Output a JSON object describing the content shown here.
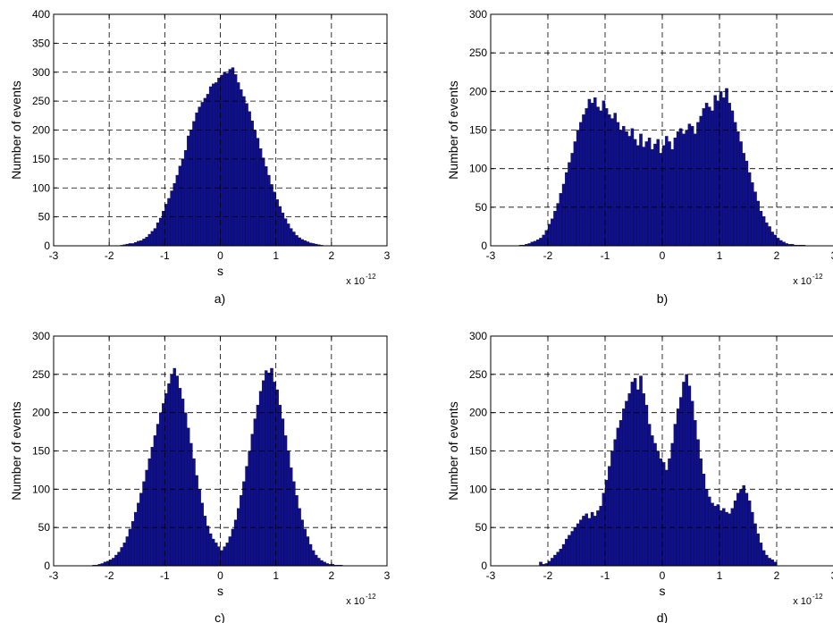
{
  "figure": {
    "panel_labels": [
      "a)",
      "b)",
      "c)",
      "d)"
    ]
  },
  "colors": {
    "bar_fill": "#10108a",
    "bar_edge": "#000040",
    "grid": "#000000",
    "axes": "#000000"
  },
  "chart_data": [
    {
      "type": "bar",
      "panel": "a)",
      "xlabel": "s",
      "ylabel": "Number of events",
      "x_multiplier": "x 10",
      "x_exponent": "-12",
      "xlim": [
        -3,
        3
      ],
      "ylim": [
        0,
        400
      ],
      "xticks": [
        "-3",
        "-2",
        "-1",
        "0",
        "1",
        "2",
        "3"
      ],
      "yticks": [
        "0",
        "50",
        "100",
        "150",
        "200",
        "250",
        "300",
        "350",
        "400"
      ],
      "grid": true,
      "bin_width": 0.05,
      "x": [
        -1.8,
        -1.75,
        -1.7,
        -1.65,
        -1.6,
        -1.55,
        -1.5,
        -1.45,
        -1.4,
        -1.35,
        -1.3,
        -1.25,
        -1.2,
        -1.15,
        -1.1,
        -1.05,
        -1.0,
        -0.95,
        -0.9,
        -0.85,
        -0.8,
        -0.75,
        -0.7,
        -0.65,
        -0.6,
        -0.55,
        -0.5,
        -0.45,
        -0.4,
        -0.35,
        -0.3,
        -0.25,
        -0.2,
        -0.15,
        -0.1,
        -0.05,
        0.0,
        0.05,
        0.1,
        0.15,
        0.2,
        0.25,
        0.3,
        0.35,
        0.4,
        0.45,
        0.5,
        0.55,
        0.6,
        0.65,
        0.7,
        0.75,
        0.8,
        0.85,
        0.9,
        0.95,
        1.0,
        1.05,
        1.1,
        1.15,
        1.2,
        1.25,
        1.3,
        1.35,
        1.4,
        1.45,
        1.5,
        1.55,
        1.6,
        1.65,
        1.7,
        1.75,
        1.8
      ],
      "values": [
        1,
        2,
        3,
        4,
        4,
        6,
        8,
        9,
        12,
        15,
        20,
        25,
        30,
        40,
        48,
        60,
        72,
        82,
        95,
        108,
        122,
        138,
        150,
        165,
        190,
        200,
        215,
        230,
        240,
        248,
        255,
        262,
        275,
        280,
        282,
        290,
        295,
        300,
        298,
        305,
        308,
        296,
        282,
        270,
        258,
        246,
        232,
        216,
        200,
        186,
        168,
        152,
        137,
        122,
        106,
        93,
        80,
        68,
        57,
        47,
        38,
        30,
        24,
        18,
        14,
        11,
        9,
        7,
        5,
        4,
        3,
        2,
        1
      ]
    },
    {
      "type": "bar",
      "panel": "b)",
      "xlabel": "",
      "ylabel": "Number of events",
      "x_multiplier": "x 10",
      "x_exponent": "-12",
      "xlim": [
        -3,
        3
      ],
      "ylim": [
        0,
        300
      ],
      "xticks": [
        "-3",
        "-2",
        "-1",
        "0",
        "1",
        "2",
        "3"
      ],
      "yticks": [
        "0",
        "50",
        "100",
        "150",
        "200",
        "250",
        "300"
      ],
      "grid": true,
      "bin_width": 0.05,
      "x": [
        -2.5,
        -2.45,
        -2.4,
        -2.35,
        -2.3,
        -2.25,
        -2.2,
        -2.15,
        -2.1,
        -2.05,
        -2.0,
        -1.95,
        -1.9,
        -1.85,
        -1.8,
        -1.75,
        -1.7,
        -1.65,
        -1.6,
        -1.55,
        -1.5,
        -1.45,
        -1.4,
        -1.35,
        -1.3,
        -1.25,
        -1.2,
        -1.15,
        -1.1,
        -1.05,
        -1.0,
        -0.95,
        -0.9,
        -0.85,
        -0.8,
        -0.75,
        -0.7,
        -0.65,
        -0.6,
        -0.55,
        -0.5,
        -0.45,
        -0.4,
        -0.35,
        -0.3,
        -0.25,
        -0.2,
        -0.15,
        -0.1,
        -0.05,
        0.0,
        0.05,
        0.1,
        0.15,
        0.2,
        0.25,
        0.3,
        0.35,
        0.4,
        0.45,
        0.5,
        0.55,
        0.6,
        0.65,
        0.7,
        0.75,
        0.8,
        0.85,
        0.9,
        0.95,
        1.0,
        1.05,
        1.1,
        1.15,
        1.2,
        1.25,
        1.3,
        1.35,
        1.4,
        1.45,
        1.5,
        1.55,
        1.6,
        1.65,
        1.7,
        1.75,
        1.8,
        1.85,
        1.9,
        1.95,
        2.0,
        2.05,
        2.1,
        2.15,
        2.2,
        2.25,
        2.3,
        2.35,
        2.4,
        2.45
      ],
      "values": [
        1,
        1,
        2,
        3,
        5,
        6,
        8,
        10,
        14,
        20,
        28,
        35,
        45,
        55,
        68,
        80,
        95,
        108,
        120,
        135,
        150,
        160,
        170,
        178,
        190,
        185,
        192,
        180,
        175,
        188,
        178,
        170,
        165,
        172,
        160,
        150,
        155,
        148,
        142,
        152,
        138,
        130,
        145,
        128,
        135,
        140,
        125,
        132,
        138,
        120,
        130,
        142,
        135,
        125,
        140,
        148,
        152,
        145,
        150,
        158,
        155,
        145,
        160,
        168,
        178,
        185,
        180,
        175,
        195,
        188,
        200,
        192,
        204,
        185,
        175,
        160,
        148,
        135,
        120,
        110,
        95,
        82,
        70,
        58,
        45,
        38,
        30,
        25,
        18,
        14,
        10,
        7,
        5,
        3,
        2,
        2,
        1,
        1,
        1,
        1
      ]
    },
    {
      "type": "bar",
      "panel": "c)",
      "xlabel": "s",
      "ylabel": "Number of events",
      "x_multiplier": "x 10",
      "x_exponent": "-12",
      "xlim": [
        -3,
        3
      ],
      "ylim": [
        0,
        300
      ],
      "xticks": [
        "-3",
        "-2",
        "-1",
        "0",
        "1",
        "2",
        "3"
      ],
      "yticks": [
        "0",
        "50",
        "100",
        "150",
        "200",
        "250",
        "300"
      ],
      "grid": true,
      "bin_width": 0.05,
      "x": [
        -2.3,
        -2.25,
        -2.2,
        -2.15,
        -2.1,
        -2.05,
        -2.0,
        -1.95,
        -1.9,
        -1.85,
        -1.8,
        -1.75,
        -1.7,
        -1.65,
        -1.6,
        -1.55,
        -1.5,
        -1.45,
        -1.4,
        -1.35,
        -1.3,
        -1.25,
        -1.2,
        -1.15,
        -1.1,
        -1.05,
        -1.0,
        -0.95,
        -0.9,
        -0.85,
        -0.8,
        -0.75,
        -0.7,
        -0.65,
        -0.6,
        -0.55,
        -0.5,
        -0.45,
        -0.4,
        -0.35,
        -0.3,
        -0.25,
        -0.2,
        -0.15,
        -0.1,
        -0.05,
        0.0,
        0.05,
        0.1,
        0.15,
        0.2,
        0.25,
        0.3,
        0.35,
        0.4,
        0.45,
        0.5,
        0.55,
        0.6,
        0.65,
        0.7,
        0.75,
        0.8,
        0.85,
        0.9,
        0.95,
        1.0,
        1.05,
        1.1,
        1.15,
        1.2,
        1.25,
        1.3,
        1.35,
        1.4,
        1.45,
        1.5,
        1.55,
        1.6,
        1.65,
        1.7,
        1.75,
        1.8,
        1.85,
        1.9,
        1.95,
        2.0,
        2.05,
        2.1,
        2.15
      ],
      "values": [
        1,
        1,
        2,
        3,
        5,
        6,
        8,
        10,
        14,
        18,
        24,
        30,
        38,
        48,
        58,
        70,
        82,
        95,
        110,
        125,
        140,
        155,
        170,
        185,
        200,
        212,
        225,
        238,
        250,
        258,
        248,
        232,
        218,
        200,
        180,
        160,
        140,
        118,
        100,
        82,
        65,
        52,
        42,
        35,
        30,
        25,
        20,
        25,
        30,
        38,
        48,
        60,
        75,
        92,
        110,
        130,
        150,
        172,
        192,
        210,
        228,
        242,
        255,
        252,
        258,
        240,
        230,
        210,
        192,
        170,
        150,
        128,
        110,
        92,
        75,
        60,
        48,
        38,
        28,
        20,
        14,
        10,
        7,
        5,
        3,
        2,
        2,
        1,
        1,
        1
      ]
    },
    {
      "type": "bar",
      "panel": "d)",
      "xlabel": "s",
      "ylabel": "Number of events",
      "x_multiplier": "x 10",
      "x_exponent": "-12",
      "xlim": [
        -3,
        3
      ],
      "ylim": [
        0,
        300
      ],
      "xticks": [
        "-3",
        "-2",
        "-1",
        "0",
        "1",
        "2",
        "3"
      ],
      "yticks": [
        "0",
        "50",
        "100",
        "150",
        "200",
        "250",
        "300"
      ],
      "grid": true,
      "bin_width": 0.05,
      "x": [
        -2.15,
        -2.1,
        -2.05,
        -2.0,
        -1.95,
        -1.9,
        -1.85,
        -1.8,
        -1.75,
        -1.7,
        -1.65,
        -1.6,
        -1.55,
        -1.5,
        -1.45,
        -1.4,
        -1.35,
        -1.3,
        -1.25,
        -1.2,
        -1.15,
        -1.1,
        -1.05,
        -1.0,
        -0.95,
        -0.9,
        -0.85,
        -0.8,
        -0.75,
        -0.7,
        -0.65,
        -0.6,
        -0.55,
        -0.5,
        -0.45,
        -0.4,
        -0.35,
        -0.3,
        -0.25,
        -0.2,
        -0.15,
        -0.1,
        -0.05,
        0.0,
        0.05,
        0.1,
        0.15,
        0.2,
        0.25,
        0.3,
        0.35,
        0.4,
        0.45,
        0.5,
        0.55,
        0.6,
        0.65,
        0.7,
        0.75,
        0.8,
        0.85,
        0.9,
        0.95,
        1.0,
        1.05,
        1.1,
        1.15,
        1.2,
        1.25,
        1.3,
        1.35,
        1.4,
        1.45,
        1.5,
        1.55,
        1.6,
        1.65,
        1.7,
        1.75,
        1.8,
        1.85,
        1.9,
        1.95
      ],
      "values": [
        5,
        2,
        3,
        6,
        10,
        14,
        18,
        22,
        28,
        35,
        40,
        45,
        50,
        55,
        60,
        65,
        68,
        62,
        70,
        65,
        72,
        78,
        95,
        112,
        130,
        150,
        165,
        180,
        190,
        205,
        215,
        225,
        240,
        245,
        230,
        248,
        225,
        210,
        185,
        170,
        160,
        150,
        140,
        135,
        125,
        140,
        160,
        185,
        205,
        220,
        240,
        250,
        235,
        215,
        190,
        165,
        140,
        120,
        100,
        90,
        82,
        78,
        80,
        72,
        75,
        70,
        68,
        75,
        85,
        95,
        100,
        105,
        95,
        85,
        70,
        55,
        42,
        30,
        20,
        14,
        10,
        8,
        5
      ]
    }
  ]
}
